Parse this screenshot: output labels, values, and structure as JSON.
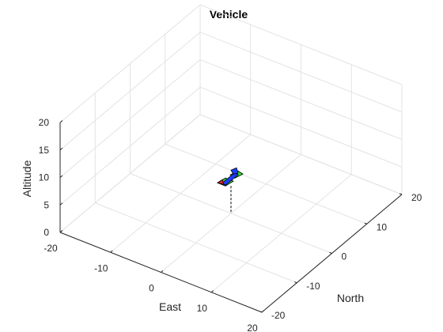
{
  "chart_data": {
    "type": "scatter",
    "title": "Vehicle",
    "xlabel": "East",
    "ylabel": "North",
    "zlabel": "Altitude",
    "xlim": [
      -20,
      20
    ],
    "ylim": [
      -20,
      20
    ],
    "zlim": [
      0,
      20
    ],
    "x_ticks": [
      "-20",
      "-10",
      "0",
      "10",
      "20"
    ],
    "y_ticks": [
      "-20",
      "-10",
      "0",
      "10",
      "20"
    ],
    "z_ticks": [
      "0",
      "5",
      "10",
      "15",
      "20"
    ],
    "grid": true,
    "vehicle": {
      "east": 0,
      "north": 0,
      "altitude": 5,
      "colors": {
        "fuselage": "#1f3bff",
        "wings": "#33dd33",
        "tail": "#dd2222",
        "outline": "#000000"
      }
    }
  }
}
